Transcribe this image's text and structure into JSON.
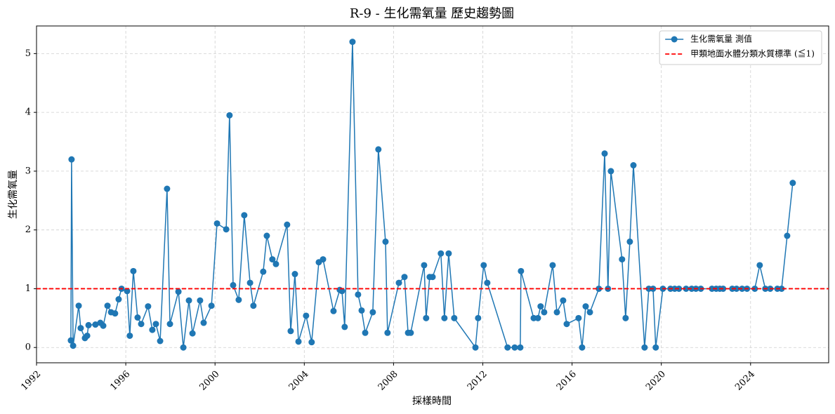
{
  "chart_data": {
    "type": "line",
    "title": "R-9 - 生化需氧量 歷史趨勢圖",
    "x_label": "採樣時間",
    "y_label": "生化需氧量",
    "xlim": [
      1992,
      2027.5
    ],
    "ylim": [
      -0.26,
      5.47
    ],
    "xticks": [
      1992,
      1996,
      2000,
      2004,
      2008,
      2012,
      2016,
      2020,
      2024
    ],
    "yticks": [
      0,
      1,
      2,
      3,
      4,
      5
    ],
    "grid": true,
    "legend": "upper right",
    "series": [
      {
        "name": "生化需氧量 測值",
        "color": "#1f77b4",
        "x": [
          1993.54,
          1993.57,
          1993.64,
          1993.89,
          1993.98,
          1994.17,
          1994.27,
          1994.33,
          1994.64,
          1994.86,
          1994.99,
          1995.18,
          1995.34,
          1995.52,
          1995.68,
          1995.81,
          1996.06,
          1996.18,
          1996.34,
          1996.53,
          1996.69,
          1997.0,
          1997.19,
          1997.35,
          1997.54,
          1997.85,
          1997.98,
          1998.36,
          1998.58,
          1998.83,
          1998.99,
          1999.33,
          1999.49,
          1999.84,
          2000.09,
          2000.5,
          2000.65,
          2000.81,
          2001.06,
          2001.31,
          2001.57,
          2001.72,
          2002.16,
          2002.32,
          2002.57,
          2002.73,
          2003.23,
          2003.39,
          2003.58,
          2003.74,
          2004.08,
          2004.33,
          2004.65,
          2004.84,
          2005.31,
          2005.59,
          2005.69,
          2005.81,
          2006.16,
          2006.41,
          2006.57,
          2006.73,
          2007.07,
          2007.32,
          2007.64,
          2007.73,
          2008.24,
          2008.49,
          2008.65,
          2008.77,
          2009.37,
          2009.46,
          2009.62,
          2009.75,
          2010.12,
          2010.28,
          2010.47,
          2010.72,
          2011.67,
          2011.79,
          2012.04,
          2012.2,
          2013.11,
          2013.43,
          2013.68,
          2013.71,
          2014.28,
          2014.47,
          2014.59,
          2014.75,
          2015.13,
          2015.32,
          2015.6,
          2015.76,
          2016.29,
          2016.45,
          2016.61,
          2016.8,
          2017.2,
          2017.46,
          2017.61,
          2017.74,
          2018.24,
          2018.4,
          2018.59,
          2018.75,
          2019.25,
          2019.44,
          2019.63,
          2019.75,
          2020.07,
          2020.41,
          2020.6,
          2020.79,
          2021.11,
          2021.36,
          2021.55,
          2021.77,
          2022.27,
          2022.46,
          2022.62,
          2022.77,
          2023.18,
          2023.37,
          2023.62,
          2023.84,
          2024.19,
          2024.41,
          2024.66,
          2024.88,
          2025.2,
          2025.39,
          2025.64,
          2025.89
        ],
        "values": [
          0.12,
          3.2,
          0.03,
          0.71,
          0.33,
          0.16,
          0.2,
          0.38,
          0.39,
          0.42,
          0.37,
          0.71,
          0.6,
          0.58,
          0.82,
          1.0,
          0.96,
          0.2,
          1.3,
          0.51,
          0.4,
          0.7,
          0.3,
          0.4,
          0.11,
          2.7,
          0.4,
          0.95,
          0.0,
          0.8,
          0.24,
          0.8,
          0.42,
          0.71,
          2.11,
          2.01,
          3.95,
          1.06,
          0.81,
          2.25,
          1.1,
          0.71,
          1.29,
          1.9,
          1.5,
          1.42,
          2.09,
          0.28,
          1.25,
          0.1,
          0.54,
          0.09,
          1.45,
          1.5,
          0.62,
          0.98,
          0.96,
          0.35,
          5.2,
          0.9,
          0.63,
          0.25,
          0.6,
          3.37,
          1.8,
          0.25,
          1.1,
          1.2,
          0.25,
          0.25,
          1.4,
          0.5,
          1.2,
          1.2,
          1.6,
          0.5,
          1.6,
          0.5,
          0.0,
          0.5,
          1.4,
          1.1,
          0.0,
          0.0,
          0.0,
          1.3,
          0.5,
          0.5,
          0.7,
          0.6,
          1.4,
          0.6,
          0.8,
          0.4,
          0.5,
          0.0,
          0.7,
          0.6,
          1.0,
          3.3,
          1.0,
          3.0,
          1.5,
          0.5,
          1.8,
          3.1,
          0.0,
          1.0,
          1.0,
          0.0,
          1.0,
          1.0,
          1.0,
          1.0,
          1.0,
          1.0,
          1.0,
          1.0,
          1.0,
          1.0,
          1.0,
          1.0,
          1.0,
          1.0,
          1.0,
          1.0,
          1.0,
          1.4,
          1.0,
          1.0,
          1.0,
          1.0,
          1.9,
          2.8
        ]
      }
    ],
    "reference_line": {
      "name": "甲類地面水體分類水質標準 (≦1)",
      "value": 1,
      "color": "#ff0000"
    }
  }
}
